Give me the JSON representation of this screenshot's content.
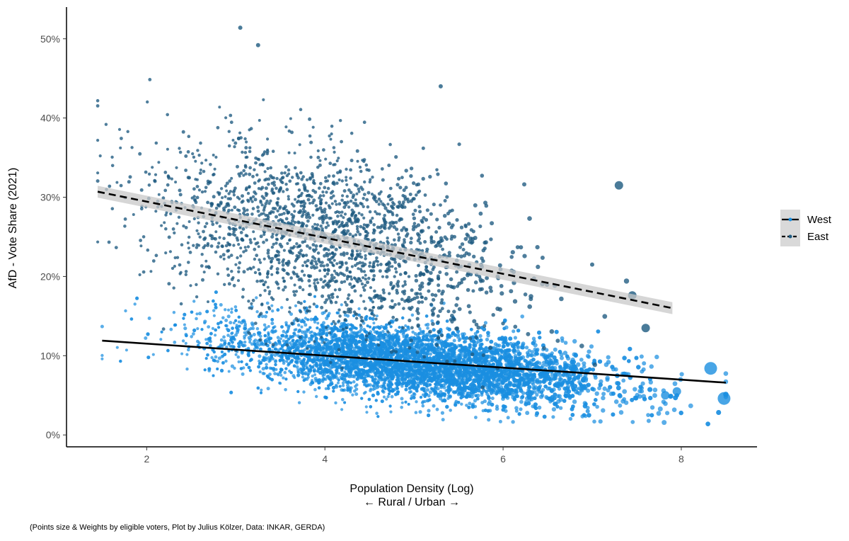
{
  "chart_data": {
    "type": "scatter",
    "xlabel_line1": "Population Density (Log)",
    "xlabel_line2": "← Rural / Urban →",
    "ylabel": "AfD - Vote Share (2021)",
    "caption": "(Points size & Weights by eligible voters, Plot by Julius Kölzer, Data: INKAR, GERDA)",
    "xlim": [
      1.1,
      8.85
    ],
    "ylim": [
      -0.015,
      0.54
    ],
    "x_ticks": [
      2,
      4,
      6,
      8
    ],
    "x_tick_labels": [
      "2",
      "4",
      "6",
      "8"
    ],
    "y_ticks": [
      0,
      0.1,
      0.2,
      0.3,
      0.4,
      0.5
    ],
    "y_tick_labels": [
      "0%",
      "10%",
      "20%",
      "30%",
      "40%",
      "50%"
    ],
    "grid": false,
    "legend_position": "right",
    "series": [
      {
        "name": "West",
        "color": "#1a8fe0",
        "line_style": "solid",
        "trend": {
          "x": [
            1.5,
            8.5
          ],
          "y": [
            0.119,
            0.066
          ]
        },
        "cloud": {
          "x_mean": 4.95,
          "x_sd": 1.05,
          "y_mean": 0.092,
          "y_sd": 0.022,
          "approx_n": 6500
        }
      },
      {
        "name": "East",
        "color": "#1d5a80",
        "line_style": "dashed",
        "trend": {
          "x": [
            1.45,
            7.9
          ],
          "y": [
            0.307,
            0.16
          ]
        },
        "cloud": {
          "x_mean": 4.0,
          "x_sd": 0.95,
          "y_mean": 0.25,
          "y_sd": 0.055,
          "approx_n": 2000
        }
      }
    ],
    "highlighted_points": [
      {
        "series": "West",
        "x": 8.33,
        "y": 0.084
      },
      {
        "series": "West",
        "x": 8.48,
        "y": 0.046
      },
      {
        "series": "West",
        "x": 7.82,
        "y": 0.05
      },
      {
        "series": "West",
        "x": 7.95,
        "y": 0.055
      },
      {
        "series": "West",
        "x": 6.95,
        "y": 0.03
      },
      {
        "series": "East",
        "x": 7.45,
        "y": 0.176
      },
      {
        "series": "East",
        "x": 7.6,
        "y": 0.135
      },
      {
        "series": "East",
        "x": 7.0,
        "y": 0.215
      },
      {
        "series": "East",
        "x": 3.05,
        "y": 0.514
      },
      {
        "series": "East",
        "x": 3.25,
        "y": 0.492
      },
      {
        "series": "East",
        "x": 5.3,
        "y": 0.44
      },
      {
        "series": "East",
        "x": 7.3,
        "y": 0.315
      }
    ]
  }
}
